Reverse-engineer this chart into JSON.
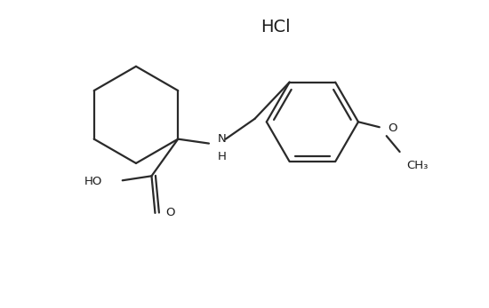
{
  "background_color": "#ffffff",
  "line_color": "#2a2a2a",
  "line_width": 1.6,
  "text_color": "#1a1a1a",
  "HCl_text": "HCl",
  "HCl_fontsize": 14,
  "fig_width": 5.5,
  "fig_height": 3.47,
  "dpi": 100,
  "xlim": [
    0,
    5.5
  ],
  "ylim": [
    0,
    3.47
  ]
}
